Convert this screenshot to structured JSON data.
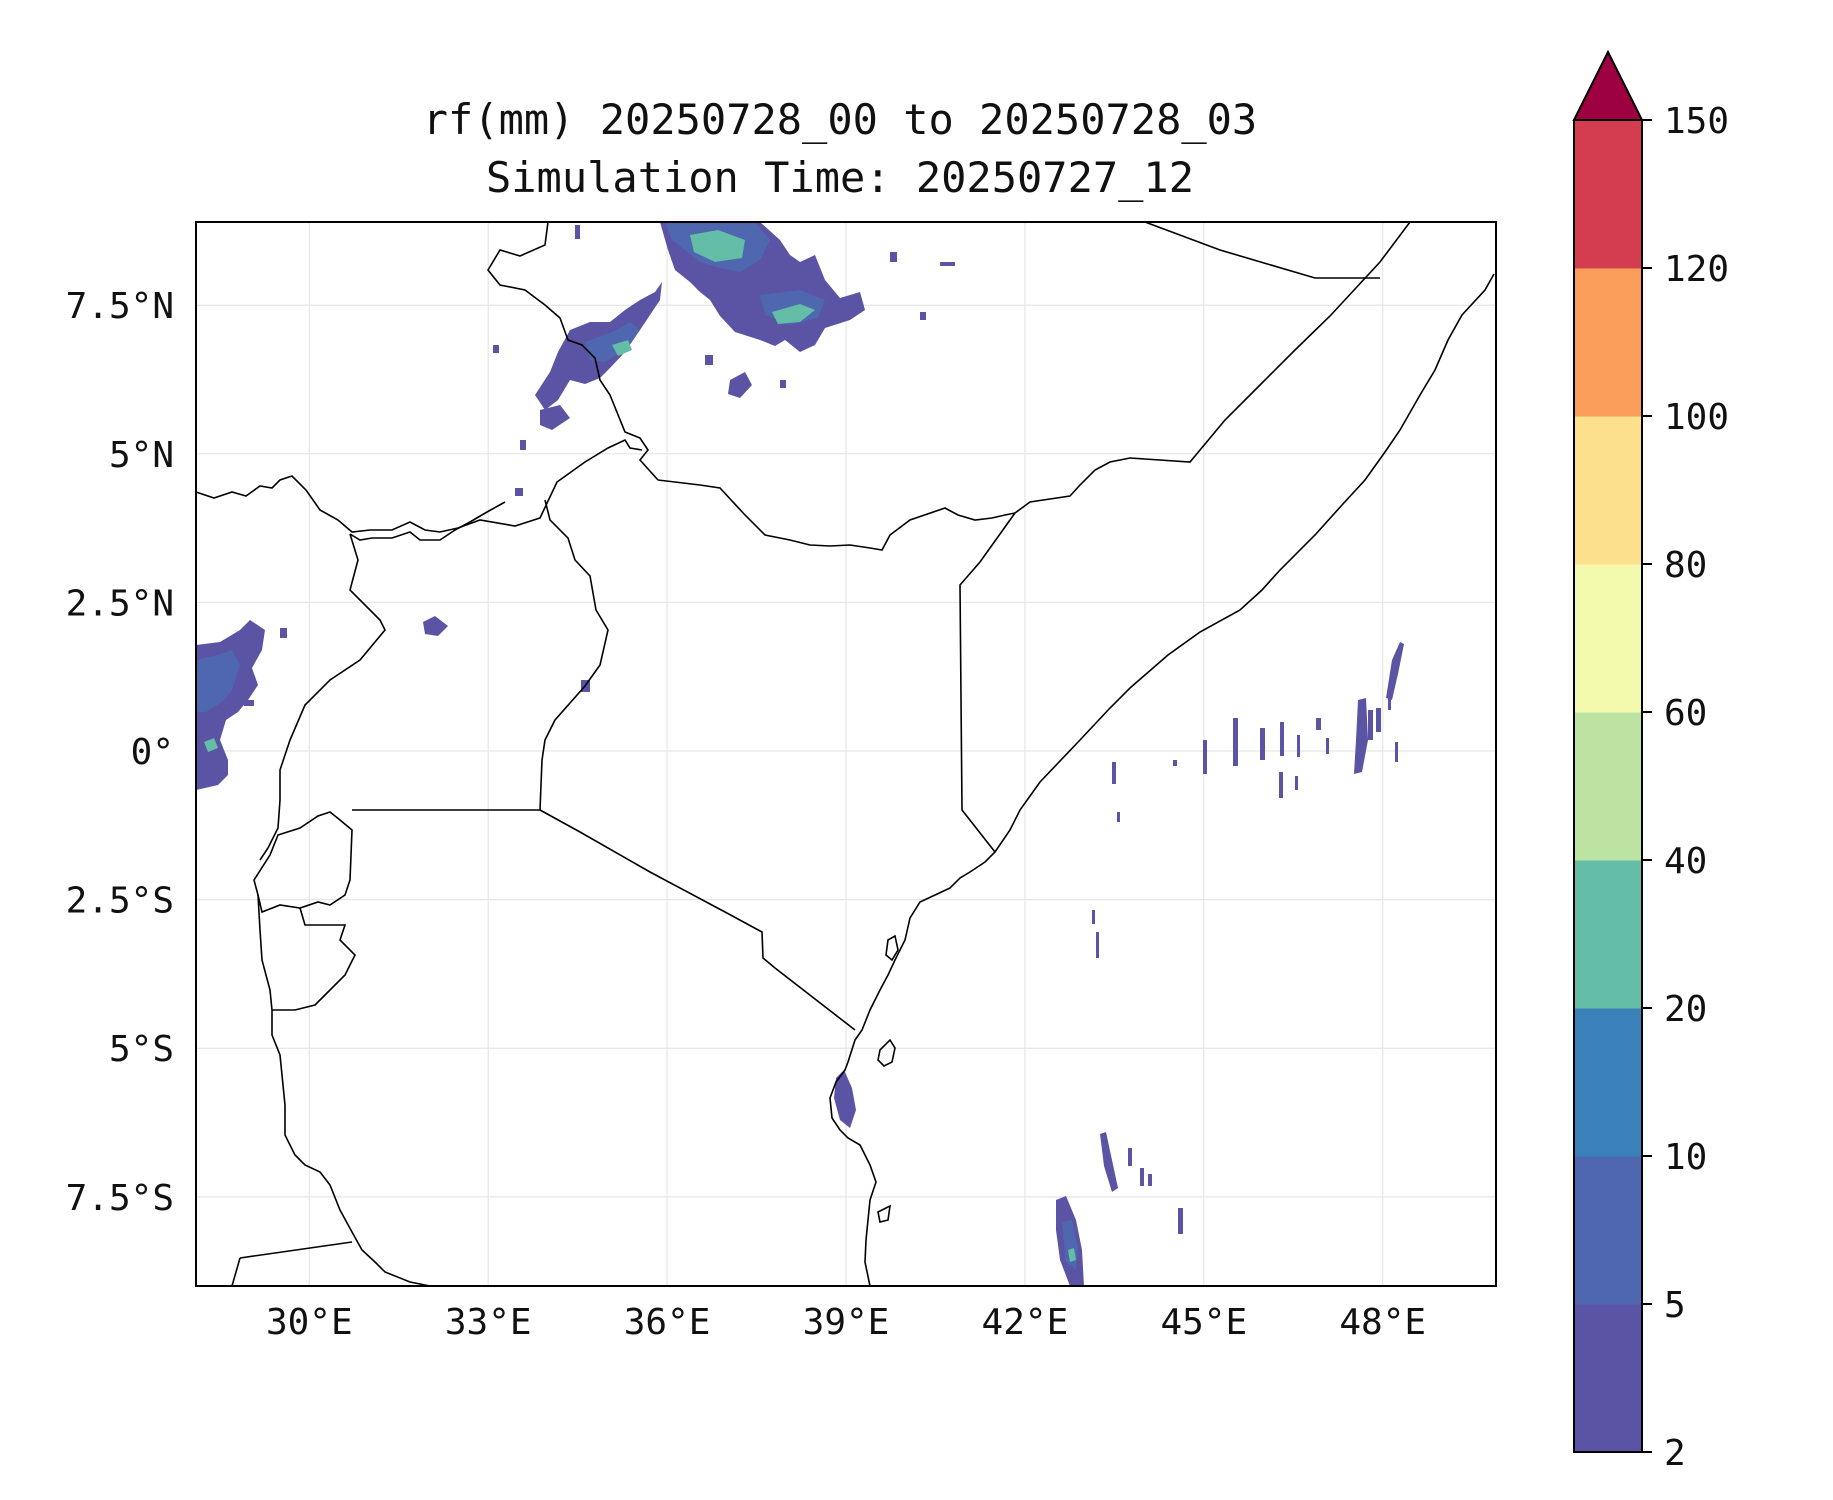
{
  "title": {
    "line1": "rf(mm) 20250728_00 to 20250728_03",
    "line2": "Simulation Time: 20250727_12"
  },
  "map": {
    "lon_range": [
      28.1,
      49.9
    ],
    "lat_range": [
      -9.0,
      8.9
    ],
    "grid": true,
    "x_ticks": [
      "30°E",
      "33°E",
      "36°E",
      "39°E",
      "42°E",
      "45°E",
      "48°E"
    ],
    "y_ticks": [
      "7.5°N",
      "5°N",
      "2.5°N",
      "0°",
      "2.5°S",
      "5°S",
      "7.5°S"
    ]
  },
  "colorbar": {
    "levels": [
      "2",
      "5",
      "10",
      "20",
      "40",
      "60",
      "80",
      "100",
      "120",
      "150"
    ],
    "colors": [
      "#5b53a4",
      "#4f67ae",
      "#3a80b9",
      "#63bda7",
      "#bde3a2",
      "#f3f9ad",
      "#fce08d",
      "#f99d59",
      "#d43d4f"
    ],
    "extend_color": "#9e0142",
    "extend": "max"
  },
  "colors": {
    "rain_low": "#5b53a4",
    "rain_mid": "#4f67ae",
    "rain_high": "#63bda7",
    "border": "#000000",
    "grid": "#e6e6e6"
  }
}
